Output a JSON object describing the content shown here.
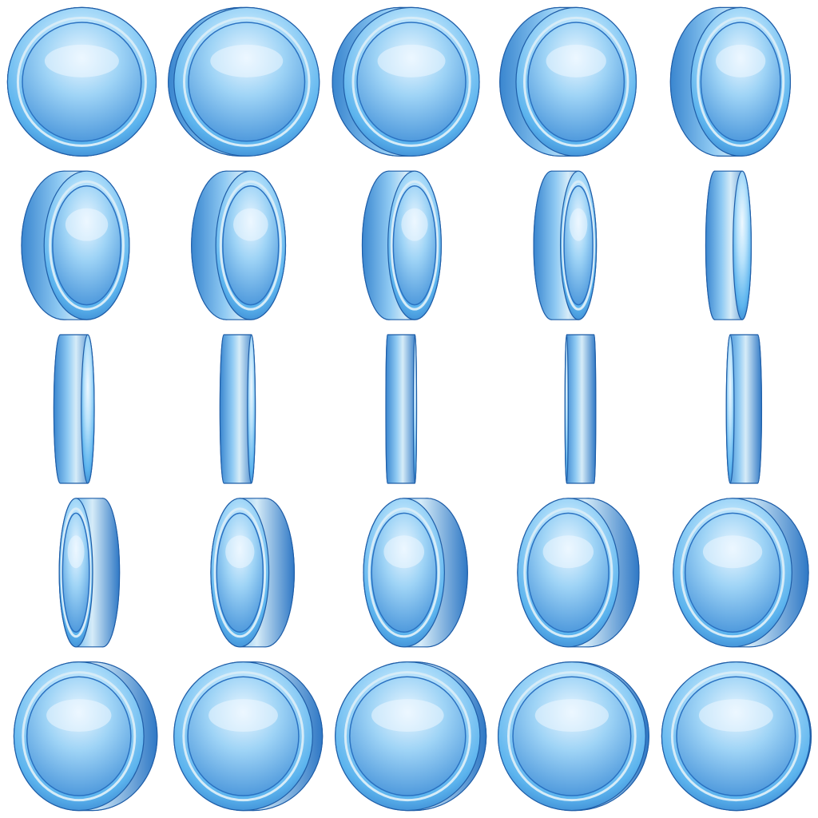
{
  "sprite_sheet": {
    "subject": "coin-spin-animation",
    "rows": 5,
    "columns": 5,
    "frame_count": 25,
    "background_color": "#ffffff",
    "colors": {
      "coin_light": "#b8e2fb",
      "coin_mid": "#5cb4ee",
      "coin_dark": "#2a72c2",
      "edge_light": "#d6ecf8",
      "edge_dark": "#3a86cf",
      "outline": "#1f5ea8",
      "highlight": "#eef8ff"
    },
    "rotation_sequence_degrees": [
      0,
      12,
      24,
      36,
      48,
      55,
      62,
      69,
      76,
      83,
      85,
      87,
      89,
      91,
      93,
      103,
      113,
      123,
      133,
      143,
      151,
      159,
      167,
      173,
      178
    ]
  }
}
